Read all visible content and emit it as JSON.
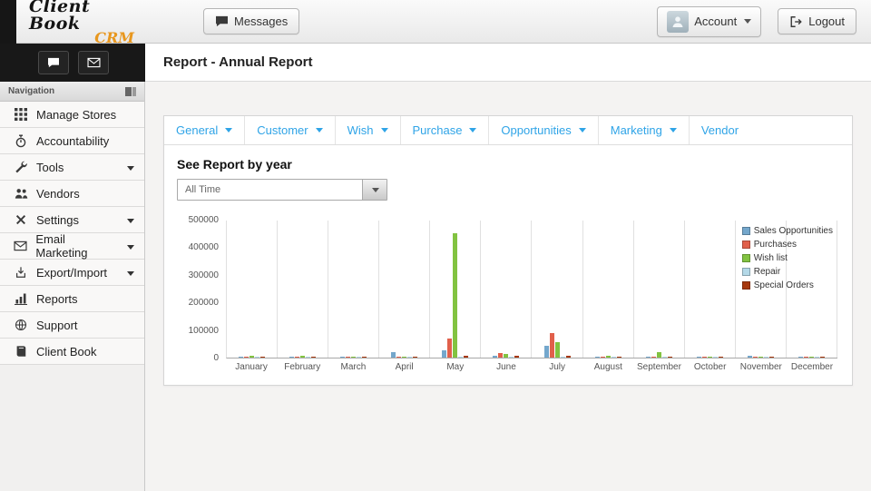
{
  "header": {
    "logo": {
      "line1": "Client Book",
      "line2": "CRM"
    },
    "messages_label": "Messages",
    "account_label": "Account",
    "logout_label": "Logout"
  },
  "content_header": {
    "title": "Report - Annual Report"
  },
  "sidebar": {
    "nav_title": "Navigation",
    "items": [
      {
        "label": "Manage Stores",
        "icon": "grid-icon",
        "has_caret": false
      },
      {
        "label": "Accountability",
        "icon": "stopwatch-icon",
        "has_caret": false
      },
      {
        "label": "Tools",
        "icon": "tools-icon",
        "has_caret": true
      },
      {
        "label": "Vendors",
        "icon": "people-icon",
        "has_caret": false
      },
      {
        "label": "Settings",
        "icon": "settings-icon",
        "has_caret": true
      },
      {
        "label": "Email Marketing",
        "icon": "envelope-icon",
        "has_caret": true
      },
      {
        "label": "Export/Import",
        "icon": "export-icon",
        "has_caret": true
      },
      {
        "label": "Reports",
        "icon": "bar-chart-icon",
        "has_caret": false
      },
      {
        "label": "Support",
        "icon": "globe-icon",
        "has_caret": false
      },
      {
        "label": "Client Book",
        "icon": "book-icon",
        "has_caret": false
      }
    ]
  },
  "panel": {
    "tabs": [
      {
        "label": "General",
        "has_caret": true
      },
      {
        "label": "Customer",
        "has_caret": true
      },
      {
        "label": "Wish",
        "has_caret": true
      },
      {
        "label": "Purchase",
        "has_caret": true
      },
      {
        "label": "Opportunities",
        "has_caret": true
      },
      {
        "label": "Marketing",
        "has_caret": true
      },
      {
        "label": "Vendor",
        "has_caret": false
      }
    ],
    "report_by_year_label": "See Report by year",
    "year_select": {
      "value": "All Time"
    }
  },
  "chart_data": {
    "type": "bar",
    "title": "",
    "xlabel": "",
    "ylabel": "",
    "ylim": [
      0,
      500000
    ],
    "yticks": [
      0,
      100000,
      200000,
      300000,
      400000,
      500000
    ],
    "grid": "vertical",
    "legend_position": "top-right",
    "categories": [
      "January",
      "February",
      "March",
      "April",
      "May",
      "June",
      "July",
      "August",
      "September",
      "October",
      "November",
      "December"
    ],
    "series": [
      {
        "name": "Sales Opportunities",
        "color": "#74a7cc",
        "values": [
          3000,
          2500,
          2500,
          21000,
          26000,
          6000,
          42000,
          2500,
          2500,
          3500,
          5000,
          3000
        ]
      },
      {
        "name": "Purchases",
        "color": "#e1604b",
        "values": [
          4000,
          4000,
          3500,
          3000,
          70000,
          17000,
          90000,
          3500,
          4000,
          3500,
          4000,
          4500
        ]
      },
      {
        "name": "Wish list",
        "color": "#82c341",
        "values": [
          5000,
          5000,
          4500,
          4000,
          450000,
          14000,
          55000,
          5000,
          20000,
          3000,
          3500,
          3000
        ]
      },
      {
        "name": "Repair",
        "color": "#b4d9e8",
        "values": [
          1500,
          1500,
          1500,
          1500,
          3000,
          2000,
          3000,
          1500,
          1500,
          1500,
          1500,
          1500
        ]
      },
      {
        "name": "Special Orders",
        "color": "#a6380e",
        "values": [
          2000,
          2000,
          2000,
          2000,
          8000,
          5000,
          8000,
          2000,
          2000,
          2000,
          2000,
          4500
        ]
      }
    ]
  }
}
